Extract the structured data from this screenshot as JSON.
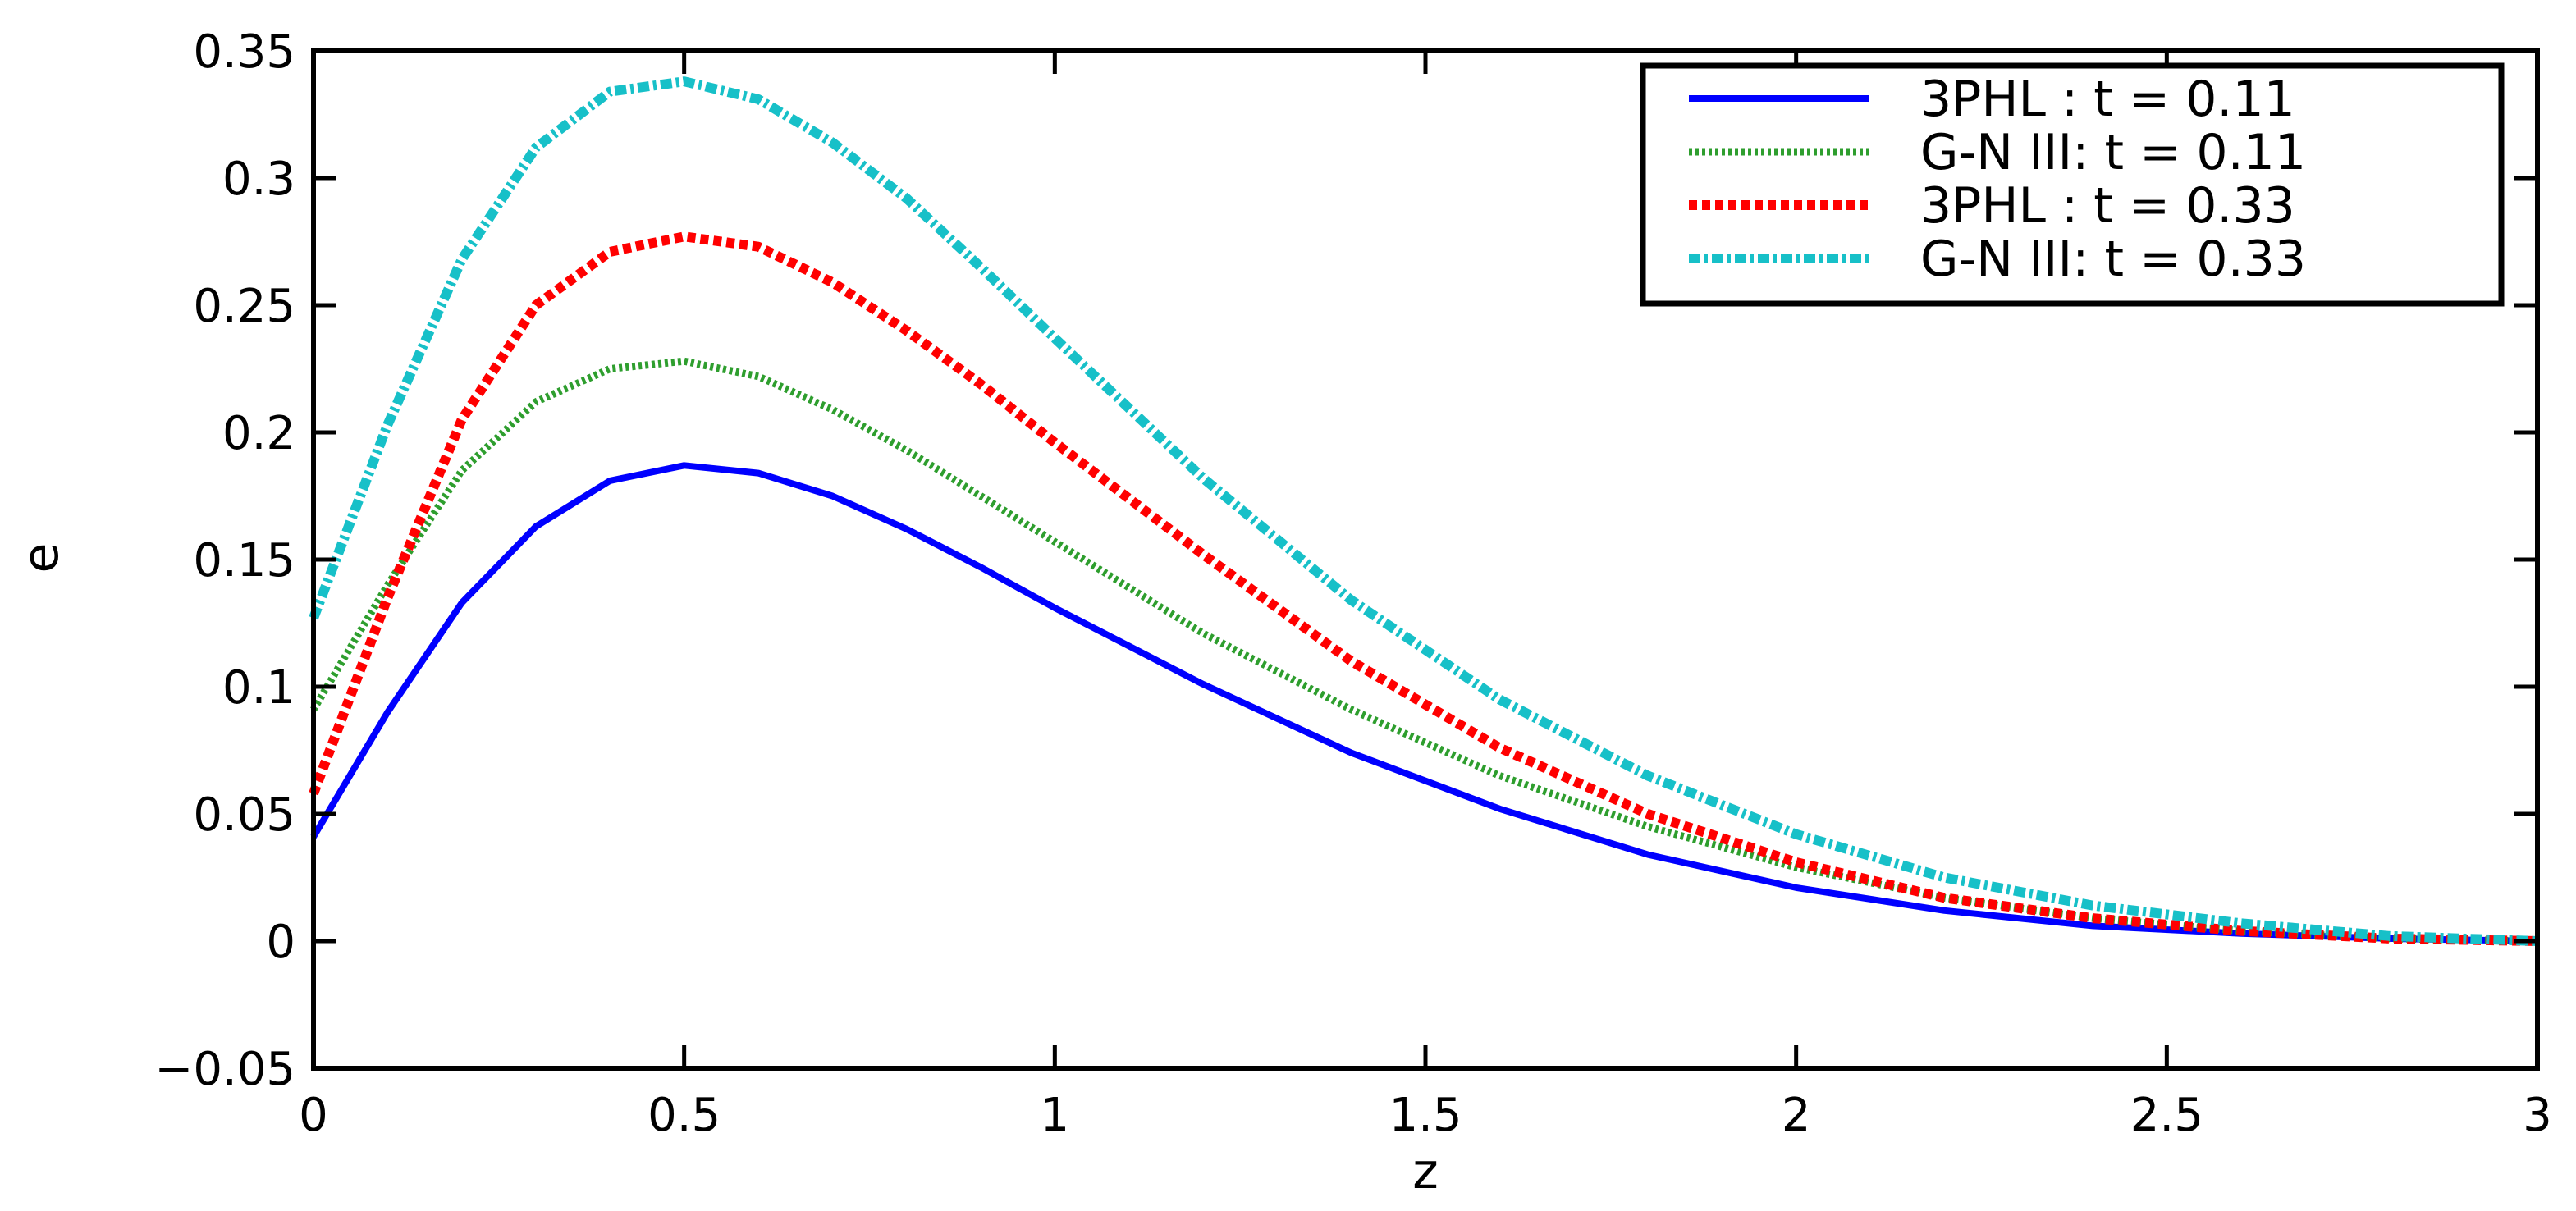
{
  "chart_data": {
    "type": "line",
    "xlabel": "z",
    "ylabel": "e",
    "xlim": [
      0,
      3
    ],
    "ylim": [
      -0.05,
      0.35
    ],
    "xticks": [
      0,
      0.5,
      1,
      1.5,
      2,
      2.5,
      3
    ],
    "xtick_labels": [
      "0",
      "0.5",
      "1",
      "1.5",
      "2",
      "2.5",
      "3"
    ],
    "yticks": [
      -0.05,
      0,
      0.05,
      0.1,
      0.15,
      0.2,
      0.25,
      0.3,
      0.35
    ],
    "ytick_labels": [
      "−0.05",
      "0",
      "0.05",
      "0.1",
      "0.15",
      "0.2",
      "0.25",
      "0.3",
      "0.35"
    ],
    "grid": false,
    "legend_position": "top-right",
    "x": [
      0,
      0.1,
      0.2,
      0.3,
      0.4,
      0.5,
      0.6,
      0.7,
      0.8,
      0.9,
      1.0,
      1.2,
      1.4,
      1.6,
      1.8,
      2.0,
      2.2,
      2.4,
      2.6,
      2.8,
      3.0
    ],
    "series": [
      {
        "name": "3PHL : t = 0.11",
        "color": "#0000ff",
        "style": "solid",
        "values": [
          0.041,
          0.09,
          0.133,
          0.163,
          0.181,
          0.187,
          0.184,
          0.175,
          0.162,
          0.147,
          0.131,
          0.101,
          0.074,
          0.052,
          0.034,
          0.021,
          0.012,
          0.006,
          0.003,
          0.001,
          0.0
        ]
      },
      {
        "name": "G-N III: t = 0.11",
        "color": "#2e9e2e",
        "style": "dotted",
        "values": [
          0.091,
          0.14,
          0.185,
          0.212,
          0.225,
          0.228,
          0.222,
          0.209,
          0.193,
          0.175,
          0.157,
          0.121,
          0.091,
          0.065,
          0.045,
          0.029,
          0.017,
          0.009,
          0.004,
          0.001,
          0.0
        ]
      },
      {
        "name": "3PHL : t = 0.33",
        "color": "#ff0000",
        "style": "dashed",
        "values": [
          0.058,
          0.135,
          0.205,
          0.25,
          0.271,
          0.277,
          0.273,
          0.259,
          0.24,
          0.219,
          0.196,
          0.152,
          0.11,
          0.076,
          0.05,
          0.031,
          0.017,
          0.009,
          0.004,
          0.001,
          0.0
        ]
      },
      {
        "name": "G-N III: t = 0.33",
        "color": "#17c0c8",
        "style": "dashdot",
        "values": [
          0.127,
          0.203,
          0.268,
          0.312,
          0.334,
          0.338,
          0.331,
          0.314,
          0.292,
          0.265,
          0.237,
          0.182,
          0.134,
          0.095,
          0.065,
          0.042,
          0.025,
          0.014,
          0.007,
          0.002,
          0.0
        ]
      }
    ]
  }
}
